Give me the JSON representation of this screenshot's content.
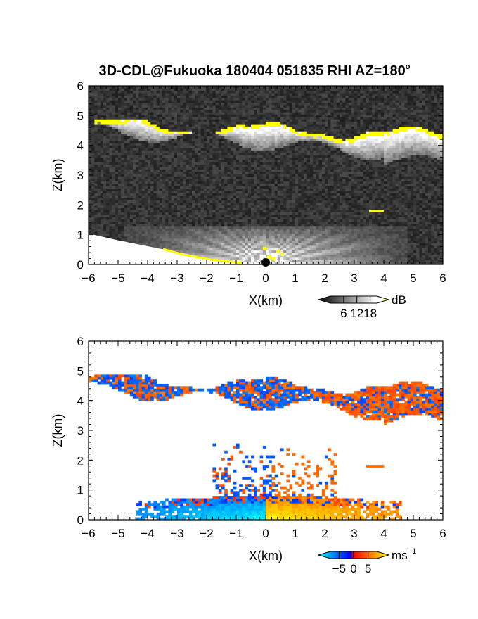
{
  "chart_data": [
    {
      "type": "heatmap",
      "title": "3D-CDL@Fukuoka 180404 051835 RHI AZ=180",
      "title_degree_mark": "o",
      "xlabel": "X(km)",
      "ylabel": "Z(km)",
      "xlim": [
        -6,
        6
      ],
      "ylim": [
        0,
        6
      ],
      "xticks": [
        "−6",
        "−5",
        "−4",
        "−3",
        "−2",
        "−1",
        "0",
        "1",
        "2",
        "3",
        "4",
        "5",
        "6"
      ],
      "yticks": [
        "0",
        "1",
        "2",
        "3",
        "4",
        "5",
        "6"
      ],
      "quantity": "backscatter intensity",
      "colorbar": {
        "unit": "dB",
        "tick_labels": [
          "6",
          "12",
          "18"
        ],
        "tick_values": [
          6,
          12,
          18
        ],
        "range": [
          0,
          21
        ],
        "colors": [
          "#000000",
          "#ffffff",
          "#ffff00"
        ],
        "extend": "both"
      },
      "features": [
        {
          "kind": "cloud-layer",
          "x": [
            -6,
            6
          ],
          "z_top": [
            4.8,
            4.35
          ],
          "z_base": [
            4.4,
            3.6
          ],
          "value_db": 14
        },
        {
          "kind": "cloud-top-saturation",
          "z_km": [
            4.7,
            4.1
          ],
          "value_db": 21
        },
        {
          "kind": "boundary-layer-haze",
          "x": [
            -4.5,
            4.5
          ],
          "z_top_km": 1.2,
          "value_db": 16
        },
        {
          "kind": "small-echo",
          "x_km": 3.7,
          "z_km": 1.8,
          "value_db": 20
        }
      ],
      "radar_location": {
        "x_km": 0,
        "z_km": 0
      }
    },
    {
      "type": "heatmap",
      "title": "",
      "xlabel": "X(km)",
      "ylabel": "Z(km)",
      "xlim": [
        -6,
        6
      ],
      "ylim": [
        0,
        6
      ],
      "xticks": [
        "−6",
        "−5",
        "−4",
        "−3",
        "−2",
        "−1",
        "0",
        "1",
        "2",
        "3",
        "4",
        "5",
        "6"
      ],
      "yticks": [
        "0",
        "1",
        "2",
        "3",
        "4",
        "5",
        "6"
      ],
      "quantity": "Doppler velocity",
      "colorbar": {
        "unit": "ms",
        "unit_exponent": "−1",
        "tick_labels": [
          "−5",
          "0",
          "5"
        ],
        "tick_values": [
          -5,
          0,
          5
        ],
        "range": [
          -8,
          8
        ],
        "colors": [
          "#00ffff",
          "#0000ff",
          "#ff0000",
          "#ffff00"
        ],
        "extend": "both"
      },
      "features": [
        {
          "kind": "cloud-layer-velocity",
          "x": [
            -6,
            6
          ],
          "z_range_km": [
            3.6,
            4.9
          ],
          "velocity_ms": [
            -2,
            2
          ]
        },
        {
          "kind": "boundary-layer-approaching",
          "x": [
            -4.3,
            0
          ],
          "z_top_km": 0.8,
          "velocity_ms": -3.5
        },
        {
          "kind": "boundary-layer-receding",
          "x": [
            0,
            4.5
          ],
          "z_top_km": 0.8,
          "velocity_ms": 3.5
        },
        {
          "kind": "scattered-echoes",
          "x": [
            -1.5,
            2.5
          ],
          "z_range_km": [
            1,
            2.6
          ]
        },
        {
          "kind": "small-echo",
          "x_km": 3.7,
          "z_km": 1.8,
          "velocity_ms": 2
        }
      ]
    }
  ]
}
